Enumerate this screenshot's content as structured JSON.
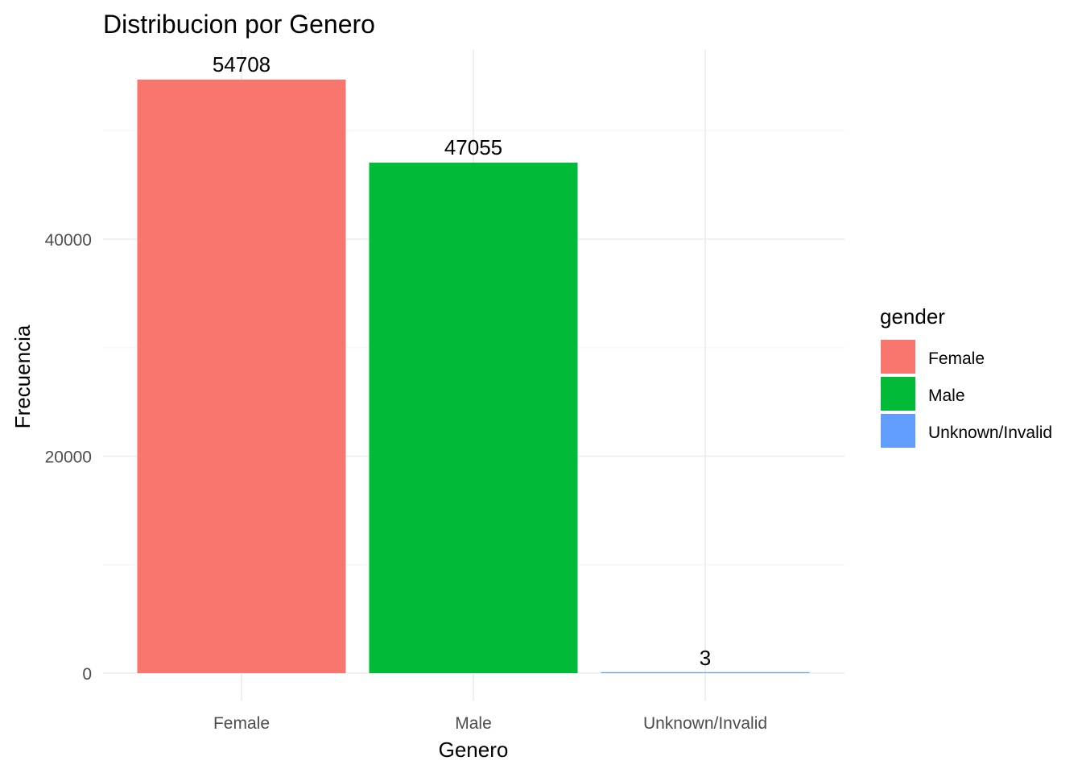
{
  "chart_data": {
    "type": "bar",
    "title": "Distribucion por Genero",
    "xlabel": "Genero",
    "ylabel": "Frecuencia",
    "categories": [
      "Female",
      "Male",
      "Unknown/Invalid"
    ],
    "values": [
      54708,
      47055,
      3
    ],
    "data_labels": [
      "54708",
      "47055",
      "3"
    ],
    "colors": [
      "#F8766D",
      "#00BA38",
      "#619CFF"
    ],
    "ylim": [
      0,
      57500
    ],
    "yticks": [
      0,
      20000,
      40000
    ],
    "ytick_labels": [
      "0",
      "20000",
      "40000"
    ],
    "grid": true,
    "legend": {
      "title": "gender",
      "placement": "right",
      "items": [
        "Female",
        "Male",
        "Unknown/Invalid"
      ]
    }
  }
}
